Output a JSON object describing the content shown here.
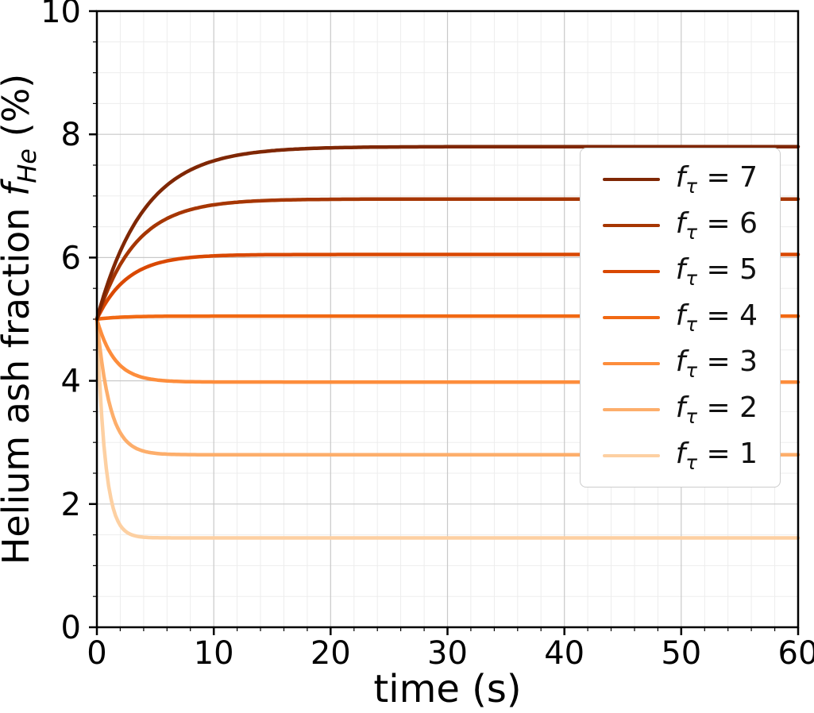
{
  "chart_data": {
    "type": "line",
    "title": "",
    "xlabel": "time (s)",
    "ylabel": "Helium ash fraction f_He (%)",
    "ylabel_parts": [
      {
        "text": "Helium ash fraction ",
        "style": "normal"
      },
      {
        "text": "f",
        "style": "italic"
      },
      {
        "text": "He",
        "style": "sub-italic"
      },
      {
        "text": " (%)",
        "style": "normal"
      }
    ],
    "xlim": [
      0,
      60
    ],
    "ylim": [
      0,
      10
    ],
    "xticks": [
      0,
      10,
      20,
      30,
      40,
      50,
      60
    ],
    "yticks": [
      0,
      2,
      4,
      6,
      8,
      10
    ],
    "x_minor_step": 2,
    "y_minor_step": 0.5,
    "grid": "major and minor gridlines on",
    "legend_position": "upper right",
    "model": "y(t) = y_final + (y0 - y_final) * exp(-t / tau_s); all curves start at y0 = 5.0 %",
    "colors": {
      "major_grid": "#c9c9c9",
      "minor_grid": "#ededed",
      "axis": "#000000",
      "text": "#000000",
      "background": "#ffffff"
    },
    "series": [
      {
        "f_tau": 7,
        "label": {
          "base": "f",
          "sub": "τ",
          "rhs": "= 7"
        },
        "color": "#7f2704",
        "y0": 5.0,
        "y_final": 7.8,
        "tau_s": 4.0
      },
      {
        "f_tau": 6,
        "label": {
          "base": "f",
          "sub": "τ",
          "rhs": "= 6"
        },
        "color": "#a63603",
        "y0": 5.0,
        "y_final": 6.95,
        "tau_s": 3.3
      },
      {
        "f_tau": 5,
        "label": {
          "base": "f",
          "sub": "τ",
          "rhs": "= 5"
        },
        "color": "#d94801",
        "y0": 5.0,
        "y_final": 6.05,
        "tau_s": 2.6
      },
      {
        "f_tau": 4,
        "label": {
          "base": "f",
          "sub": "τ",
          "rhs": "= 4"
        },
        "color": "#f16913",
        "y0": 5.0,
        "y_final": 5.05,
        "tau_s": 2.0
      },
      {
        "f_tau": 3,
        "label": {
          "base": "f",
          "sub": "τ",
          "rhs": "= 3"
        },
        "color": "#fd8d3c",
        "y0": 5.0,
        "y_final": 3.98,
        "tau_s": 1.5
      },
      {
        "f_tau": 2,
        "label": {
          "base": "f",
          "sub": "τ",
          "rhs": "= 2"
        },
        "color": "#fdae6b",
        "y0": 5.0,
        "y_final": 2.8,
        "tau_s": 1.1
      },
      {
        "f_tau": 1,
        "label": {
          "base": "f",
          "sub": "τ",
          "rhs": "= 1"
        },
        "color": "#fdd0a2",
        "y0": 5.0,
        "y_final": 1.45,
        "tau_s": 0.7
      }
    ]
  }
}
